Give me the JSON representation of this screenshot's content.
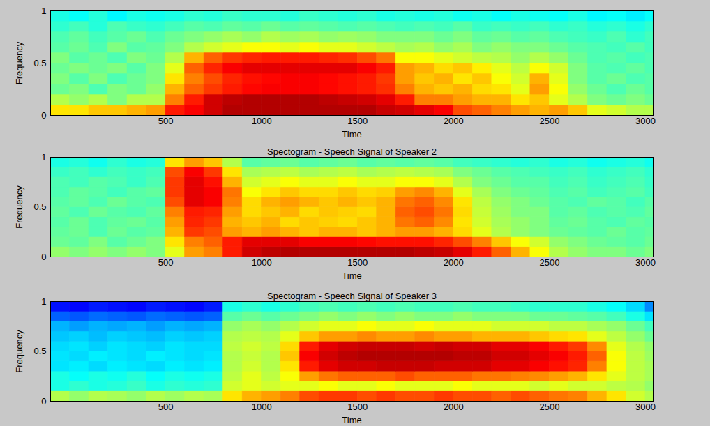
{
  "chart_data": [
    {
      "type": "heatmap",
      "x_label": "Time",
      "y_label": "Frequency",
      "xlim": [
        -100,
        3040
      ],
      "xticks": [
        500,
        1000,
        1500,
        2000,
        2500,
        3000
      ],
      "ylim": [
        0,
        1
      ],
      "yticks": [
        0,
        0.5,
        1
      ],
      "color": "jet",
      "color_range": [
        0,
        1
      ],
      "x_edges": [
        -100,
        0,
        100,
        200,
        300,
        400,
        500,
        600,
        700,
        800,
        900,
        1000,
        1100,
        1200,
        1300,
        1400,
        1500,
        1600,
        1700,
        1800,
        1900,
        2000,
        2100,
        2200,
        2300,
        2400,
        2500,
        2600,
        2700,
        2800,
        2900,
        3000,
        3100
      ],
      "y_edges": [
        0,
        0.1,
        0.2,
        0.3,
        0.4,
        0.5,
        0.6,
        0.7,
        0.8,
        0.9,
        1
      ],
      "cells": [
        [
          0.65,
          0.65,
          0.68,
          0.68,
          0.7,
          0.72,
          0.85,
          0.88,
          0.92,
          0.95,
          0.95,
          0.95,
          0.95,
          0.95,
          0.95,
          0.95,
          0.95,
          0.93,
          0.92,
          0.9,
          0.88,
          0.8,
          0.78,
          0.75,
          0.72,
          0.7,
          0.72,
          0.68,
          0.6,
          0.58,
          0.55,
          0.55
        ],
        [
          0.55,
          0.52,
          0.55,
          0.5,
          0.55,
          0.55,
          0.75,
          0.85,
          0.92,
          0.94,
          0.95,
          0.95,
          0.95,
          0.95,
          0.94,
          0.93,
          0.92,
          0.9,
          0.85,
          0.75,
          0.75,
          0.72,
          0.7,
          0.7,
          0.65,
          0.68,
          0.6,
          0.55,
          0.5,
          0.48,
          0.5,
          0.48
        ],
        [
          0.48,
          0.5,
          0.45,
          0.5,
          0.48,
          0.52,
          0.7,
          0.78,
          0.82,
          0.85,
          0.87,
          0.88,
          0.88,
          0.88,
          0.87,
          0.86,
          0.85,
          0.83,
          0.75,
          0.7,
          0.68,
          0.7,
          0.66,
          0.65,
          0.6,
          0.72,
          0.62,
          0.52,
          0.48,
          0.45,
          0.48,
          0.46
        ],
        [
          0.5,
          0.46,
          0.5,
          0.45,
          0.48,
          0.5,
          0.65,
          0.75,
          0.8,
          0.84,
          0.86,
          0.87,
          0.88,
          0.88,
          0.87,
          0.86,
          0.85,
          0.82,
          0.72,
          0.68,
          0.7,
          0.65,
          0.68,
          0.62,
          0.58,
          0.7,
          0.6,
          0.5,
          0.46,
          0.48,
          0.45,
          0.46
        ],
        [
          0.48,
          0.5,
          0.48,
          0.5,
          0.46,
          0.5,
          0.6,
          0.78,
          0.84,
          0.88,
          0.9,
          0.9,
          0.9,
          0.9,
          0.9,
          0.9,
          0.88,
          0.85,
          0.72,
          0.7,
          0.66,
          0.68,
          0.64,
          0.6,
          0.56,
          0.62,
          0.58,
          0.5,
          0.46,
          0.45,
          0.47,
          0.45
        ],
        [
          0.5,
          0.46,
          0.48,
          0.45,
          0.5,
          0.48,
          0.55,
          0.7,
          0.78,
          0.82,
          0.84,
          0.85,
          0.85,
          0.85,
          0.84,
          0.83,
          0.8,
          0.76,
          0.62,
          0.62,
          0.6,
          0.58,
          0.56,
          0.55,
          0.52,
          0.55,
          0.52,
          0.48,
          0.45,
          0.46,
          0.44,
          0.45
        ],
        [
          0.46,
          0.48,
          0.45,
          0.5,
          0.46,
          0.47,
          0.5,
          0.55,
          0.58,
          0.6,
          0.62,
          0.62,
          0.6,
          0.62,
          0.6,
          0.6,
          0.58,
          0.56,
          0.54,
          0.55,
          0.52,
          0.54,
          0.5,
          0.52,
          0.5,
          0.5,
          0.48,
          0.46,
          0.45,
          0.44,
          0.46,
          0.44
        ],
        [
          0.45,
          0.47,
          0.44,
          0.46,
          0.48,
          0.45,
          0.48,
          0.5,
          0.52,
          0.54,
          0.52,
          0.55,
          0.53,
          0.54,
          0.52,
          0.53,
          0.52,
          0.5,
          0.5,
          0.5,
          0.48,
          0.5,
          0.47,
          0.48,
          0.46,
          0.47,
          0.45,
          0.44,
          0.43,
          0.45,
          0.42,
          0.44
        ],
        [
          0.42,
          0.44,
          0.41,
          0.45,
          0.43,
          0.42,
          0.44,
          0.46,
          0.45,
          0.47,
          0.46,
          0.48,
          0.46,
          0.47,
          0.46,
          0.45,
          0.46,
          0.45,
          0.44,
          0.45,
          0.44,
          0.46,
          0.43,
          0.44,
          0.43,
          0.44,
          0.42,
          0.43,
          0.41,
          0.42,
          0.4,
          0.42
        ],
        [
          0.4,
          0.38,
          0.41,
          0.37,
          0.4,
          0.39,
          0.4,
          0.42,
          0.41,
          0.43,
          0.42,
          0.42,
          0.41,
          0.43,
          0.42,
          0.41,
          0.42,
          0.4,
          0.41,
          0.4,
          0.41,
          0.39,
          0.4,
          0.38,
          0.4,
          0.39,
          0.38,
          0.4,
          0.37,
          0.38,
          0.36,
          0.38
        ]
      ]
    },
    {
      "type": "heatmap",
      "title": "Spectogram - Speech Signal of Speaker 2",
      "x_label": "Time",
      "y_label": "Frequency",
      "xlim": [
        -100,
        3040
      ],
      "xticks": [
        500,
        1000,
        1500,
        2000,
        2500,
        3000
      ],
      "ylim": [
        0,
        1
      ],
      "yticks": [
        0,
        0.5,
        1
      ],
      "color": "jet",
      "color_range": [
        0,
        1
      ],
      "x_edges": [
        -100,
        0,
        100,
        200,
        300,
        400,
        500,
        600,
        700,
        800,
        900,
        1000,
        1100,
        1200,
        1300,
        1400,
        1500,
        1600,
        1700,
        1800,
        1900,
        2000,
        2100,
        2200,
        2300,
        2400,
        2500,
        2600,
        2700,
        2800,
        2900,
        3000,
        3100
      ],
      "y_edges": [
        0,
        0.1,
        0.2,
        0.3,
        0.4,
        0.5,
        0.6,
        0.7,
        0.8,
        0.9,
        1
      ],
      "cells": [
        [
          0.52,
          0.5,
          0.52,
          0.5,
          0.52,
          0.5,
          0.6,
          0.72,
          0.75,
          0.85,
          0.92,
          0.94,
          0.95,
          0.95,
          0.95,
          0.95,
          0.95,
          0.95,
          0.95,
          0.94,
          0.93,
          0.9,
          0.85,
          0.78,
          0.7,
          0.62,
          0.55,
          0.52,
          0.5,
          0.5,
          0.48,
          0.5
        ],
        [
          0.48,
          0.47,
          0.5,
          0.46,
          0.48,
          0.5,
          0.65,
          0.75,
          0.78,
          0.85,
          0.9,
          0.9,
          0.9,
          0.88,
          0.88,
          0.88,
          0.87,
          0.86,
          0.86,
          0.86,
          0.84,
          0.8,
          0.75,
          0.68,
          0.62,
          0.58,
          0.52,
          0.5,
          0.48,
          0.47,
          0.46,
          0.48
        ],
        [
          0.47,
          0.48,
          0.45,
          0.48,
          0.46,
          0.47,
          0.7,
          0.82,
          0.8,
          0.72,
          0.7,
          0.72,
          0.7,
          0.68,
          0.7,
          0.7,
          0.68,
          0.7,
          0.72,
          0.72,
          0.7,
          0.66,
          0.6,
          0.55,
          0.52,
          0.5,
          0.48,
          0.47,
          0.46,
          0.48,
          0.46,
          0.47
        ],
        [
          0.46,
          0.48,
          0.45,
          0.47,
          0.48,
          0.46,
          0.72,
          0.84,
          0.82,
          0.7,
          0.68,
          0.7,
          0.66,
          0.68,
          0.67,
          0.66,
          0.68,
          0.7,
          0.76,
          0.78,
          0.74,
          0.65,
          0.58,
          0.54,
          0.52,
          0.5,
          0.47,
          0.48,
          0.46,
          0.45,
          0.47,
          0.46
        ],
        [
          0.47,
          0.45,
          0.48,
          0.46,
          0.45,
          0.47,
          0.75,
          0.85,
          0.84,
          0.72,
          0.66,
          0.68,
          0.7,
          0.66,
          0.68,
          0.67,
          0.66,
          0.7,
          0.78,
          0.8,
          0.76,
          0.66,
          0.57,
          0.53,
          0.5,
          0.5,
          0.46,
          0.47,
          0.45,
          0.46,
          0.45,
          0.47
        ],
        [
          0.46,
          0.47,
          0.45,
          0.48,
          0.46,
          0.45,
          0.8,
          0.9,
          0.88,
          0.75,
          0.66,
          0.7,
          0.72,
          0.7,
          0.68,
          0.7,
          0.68,
          0.7,
          0.76,
          0.78,
          0.74,
          0.65,
          0.56,
          0.52,
          0.5,
          0.48,
          0.46,
          0.45,
          0.47,
          0.46,
          0.44,
          0.46
        ],
        [
          0.45,
          0.47,
          0.46,
          0.44,
          0.46,
          0.47,
          0.82,
          0.9,
          0.88,
          0.76,
          0.62,
          0.65,
          0.68,
          0.66,
          0.66,
          0.68,
          0.66,
          0.67,
          0.72,
          0.74,
          0.7,
          0.6,
          0.54,
          0.5,
          0.48,
          0.47,
          0.45,
          0.46,
          0.44,
          0.45,
          0.46,
          0.44
        ],
        [
          0.45,
          0.44,
          0.46,
          0.45,
          0.43,
          0.45,
          0.82,
          0.9,
          0.86,
          0.7,
          0.58,
          0.6,
          0.62,
          0.6,
          0.6,
          0.62,
          0.6,
          0.6,
          0.62,
          0.62,
          0.6,
          0.55,
          0.5,
          0.48,
          0.46,
          0.46,
          0.44,
          0.45,
          0.43,
          0.44,
          0.45,
          0.43
        ],
        [
          0.43,
          0.44,
          0.42,
          0.44,
          0.43,
          0.44,
          0.8,
          0.88,
          0.82,
          0.65,
          0.54,
          0.55,
          0.56,
          0.54,
          0.55,
          0.56,
          0.54,
          0.55,
          0.56,
          0.55,
          0.54,
          0.5,
          0.48,
          0.46,
          0.45,
          0.44,
          0.43,
          0.44,
          0.42,
          0.43,
          0.44,
          0.42
        ],
        [
          0.4,
          0.41,
          0.39,
          0.42,
          0.4,
          0.41,
          0.65,
          0.72,
          0.68,
          0.55,
          0.46,
          0.47,
          0.48,
          0.46,
          0.47,
          0.48,
          0.46,
          0.47,
          0.46,
          0.47,
          0.46,
          0.44,
          0.43,
          0.42,
          0.41,
          0.42,
          0.4,
          0.41,
          0.39,
          0.4,
          0.41,
          0.39
        ]
      ]
    },
    {
      "type": "heatmap",
      "title": "Spectogram - Speech Signal of Speaker 3",
      "x_label": "Time",
      "y_label": "Frequency",
      "xlim": [
        -100,
        3040
      ],
      "xticks": [
        500,
        1000,
        1500,
        2000,
        2500,
        3000
      ],
      "ylim": [
        0,
        1
      ],
      "yticks": [
        0,
        0.5,
        1
      ],
      "color": "jet",
      "color_range": [
        0,
        1
      ],
      "x_edges": [
        -100,
        0,
        100,
        200,
        300,
        400,
        500,
        600,
        700,
        800,
        900,
        1000,
        1100,
        1200,
        1300,
        1400,
        1500,
        1600,
        1700,
        1800,
        1900,
        2000,
        2100,
        2200,
        2300,
        2400,
        2500,
        2600,
        2700,
        2800,
        2900,
        3000,
        3100
      ],
      "y_edges": [
        0,
        0.1,
        0.2,
        0.3,
        0.4,
        0.5,
        0.6,
        0.7,
        0.8,
        0.9,
        1
      ],
      "cells": [
        [
          0.55,
          0.52,
          0.55,
          0.54,
          0.52,
          0.55,
          0.53,
          0.55,
          0.54,
          0.65,
          0.7,
          0.72,
          0.75,
          0.8,
          0.82,
          0.82,
          0.8,
          0.82,
          0.8,
          0.8,
          0.82,
          0.8,
          0.8,
          0.78,
          0.8,
          0.78,
          0.76,
          0.75,
          0.7,
          0.65,
          0.58,
          0.55
        ],
        [
          0.4,
          0.42,
          0.4,
          0.41,
          0.43,
          0.4,
          0.42,
          0.41,
          0.42,
          0.58,
          0.6,
          0.58,
          0.6,
          0.6,
          0.62,
          0.6,
          0.6,
          0.62,
          0.6,
          0.6,
          0.6,
          0.62,
          0.6,
          0.6,
          0.6,
          0.58,
          0.6,
          0.58,
          0.58,
          0.56,
          0.55,
          0.52
        ],
        [
          0.4,
          0.38,
          0.4,
          0.39,
          0.41,
          0.38,
          0.4,
          0.39,
          0.4,
          0.56,
          0.6,
          0.56,
          0.62,
          0.72,
          0.76,
          0.78,
          0.78,
          0.78,
          0.8,
          0.78,
          0.78,
          0.78,
          0.76,
          0.76,
          0.75,
          0.74,
          0.72,
          0.7,
          0.65,
          0.6,
          0.56,
          0.54
        ],
        [
          0.35,
          0.36,
          0.34,
          0.36,
          0.35,
          0.34,
          0.36,
          0.35,
          0.36,
          0.55,
          0.58,
          0.55,
          0.65,
          0.85,
          0.9,
          0.92,
          0.92,
          0.93,
          0.93,
          0.93,
          0.92,
          0.92,
          0.92,
          0.9,
          0.9,
          0.88,
          0.86,
          0.84,
          0.75,
          0.62,
          0.56,
          0.54
        ],
        [
          0.35,
          0.34,
          0.36,
          0.35,
          0.34,
          0.36,
          0.35,
          0.34,
          0.35,
          0.55,
          0.57,
          0.55,
          0.68,
          0.88,
          0.92,
          0.94,
          0.95,
          0.95,
          0.95,
          0.95,
          0.95,
          0.94,
          0.94,
          0.92,
          0.92,
          0.9,
          0.88,
          0.85,
          0.78,
          0.62,
          0.56,
          0.53
        ],
        [
          0.34,
          0.35,
          0.33,
          0.35,
          0.34,
          0.33,
          0.35,
          0.34,
          0.34,
          0.56,
          0.58,
          0.56,
          0.66,
          0.85,
          0.9,
          0.92,
          0.93,
          0.93,
          0.93,
          0.92,
          0.93,
          0.92,
          0.92,
          0.9,
          0.9,
          0.88,
          0.85,
          0.82,
          0.74,
          0.6,
          0.55,
          0.52
        ],
        [
          0.32,
          0.33,
          0.31,
          0.33,
          0.32,
          0.31,
          0.33,
          0.32,
          0.33,
          0.55,
          0.56,
          0.55,
          0.6,
          0.68,
          0.72,
          0.72,
          0.74,
          0.72,
          0.72,
          0.74,
          0.72,
          0.72,
          0.7,
          0.7,
          0.7,
          0.68,
          0.66,
          0.65,
          0.6,
          0.56,
          0.52,
          0.48
        ],
        [
          0.3,
          0.28,
          0.3,
          0.29,
          0.3,
          0.28,
          0.3,
          0.29,
          0.3,
          0.52,
          0.54,
          0.52,
          0.55,
          0.58,
          0.6,
          0.6,
          0.62,
          0.6,
          0.6,
          0.62,
          0.6,
          0.6,
          0.6,
          0.58,
          0.58,
          0.58,
          0.56,
          0.56,
          0.54,
          0.52,
          0.48,
          0.44
        ],
        [
          0.22,
          0.21,
          0.23,
          0.22,
          0.21,
          0.23,
          0.22,
          0.21,
          0.22,
          0.46,
          0.48,
          0.46,
          0.48,
          0.5,
          0.52,
          0.5,
          0.52,
          0.5,
          0.52,
          0.5,
          0.5,
          0.52,
          0.5,
          0.5,
          0.5,
          0.48,
          0.48,
          0.47,
          0.46,
          0.44,
          0.4,
          0.35
        ],
        [
          0.14,
          0.13,
          0.15,
          0.14,
          0.13,
          0.15,
          0.14,
          0.13,
          0.15,
          0.4,
          0.42,
          0.4,
          0.42,
          0.44,
          0.45,
          0.44,
          0.45,
          0.44,
          0.45,
          0.44,
          0.44,
          0.45,
          0.44,
          0.44,
          0.43,
          0.42,
          0.42,
          0.42,
          0.4,
          0.38,
          0.34,
          0.26
        ]
      ]
    }
  ]
}
